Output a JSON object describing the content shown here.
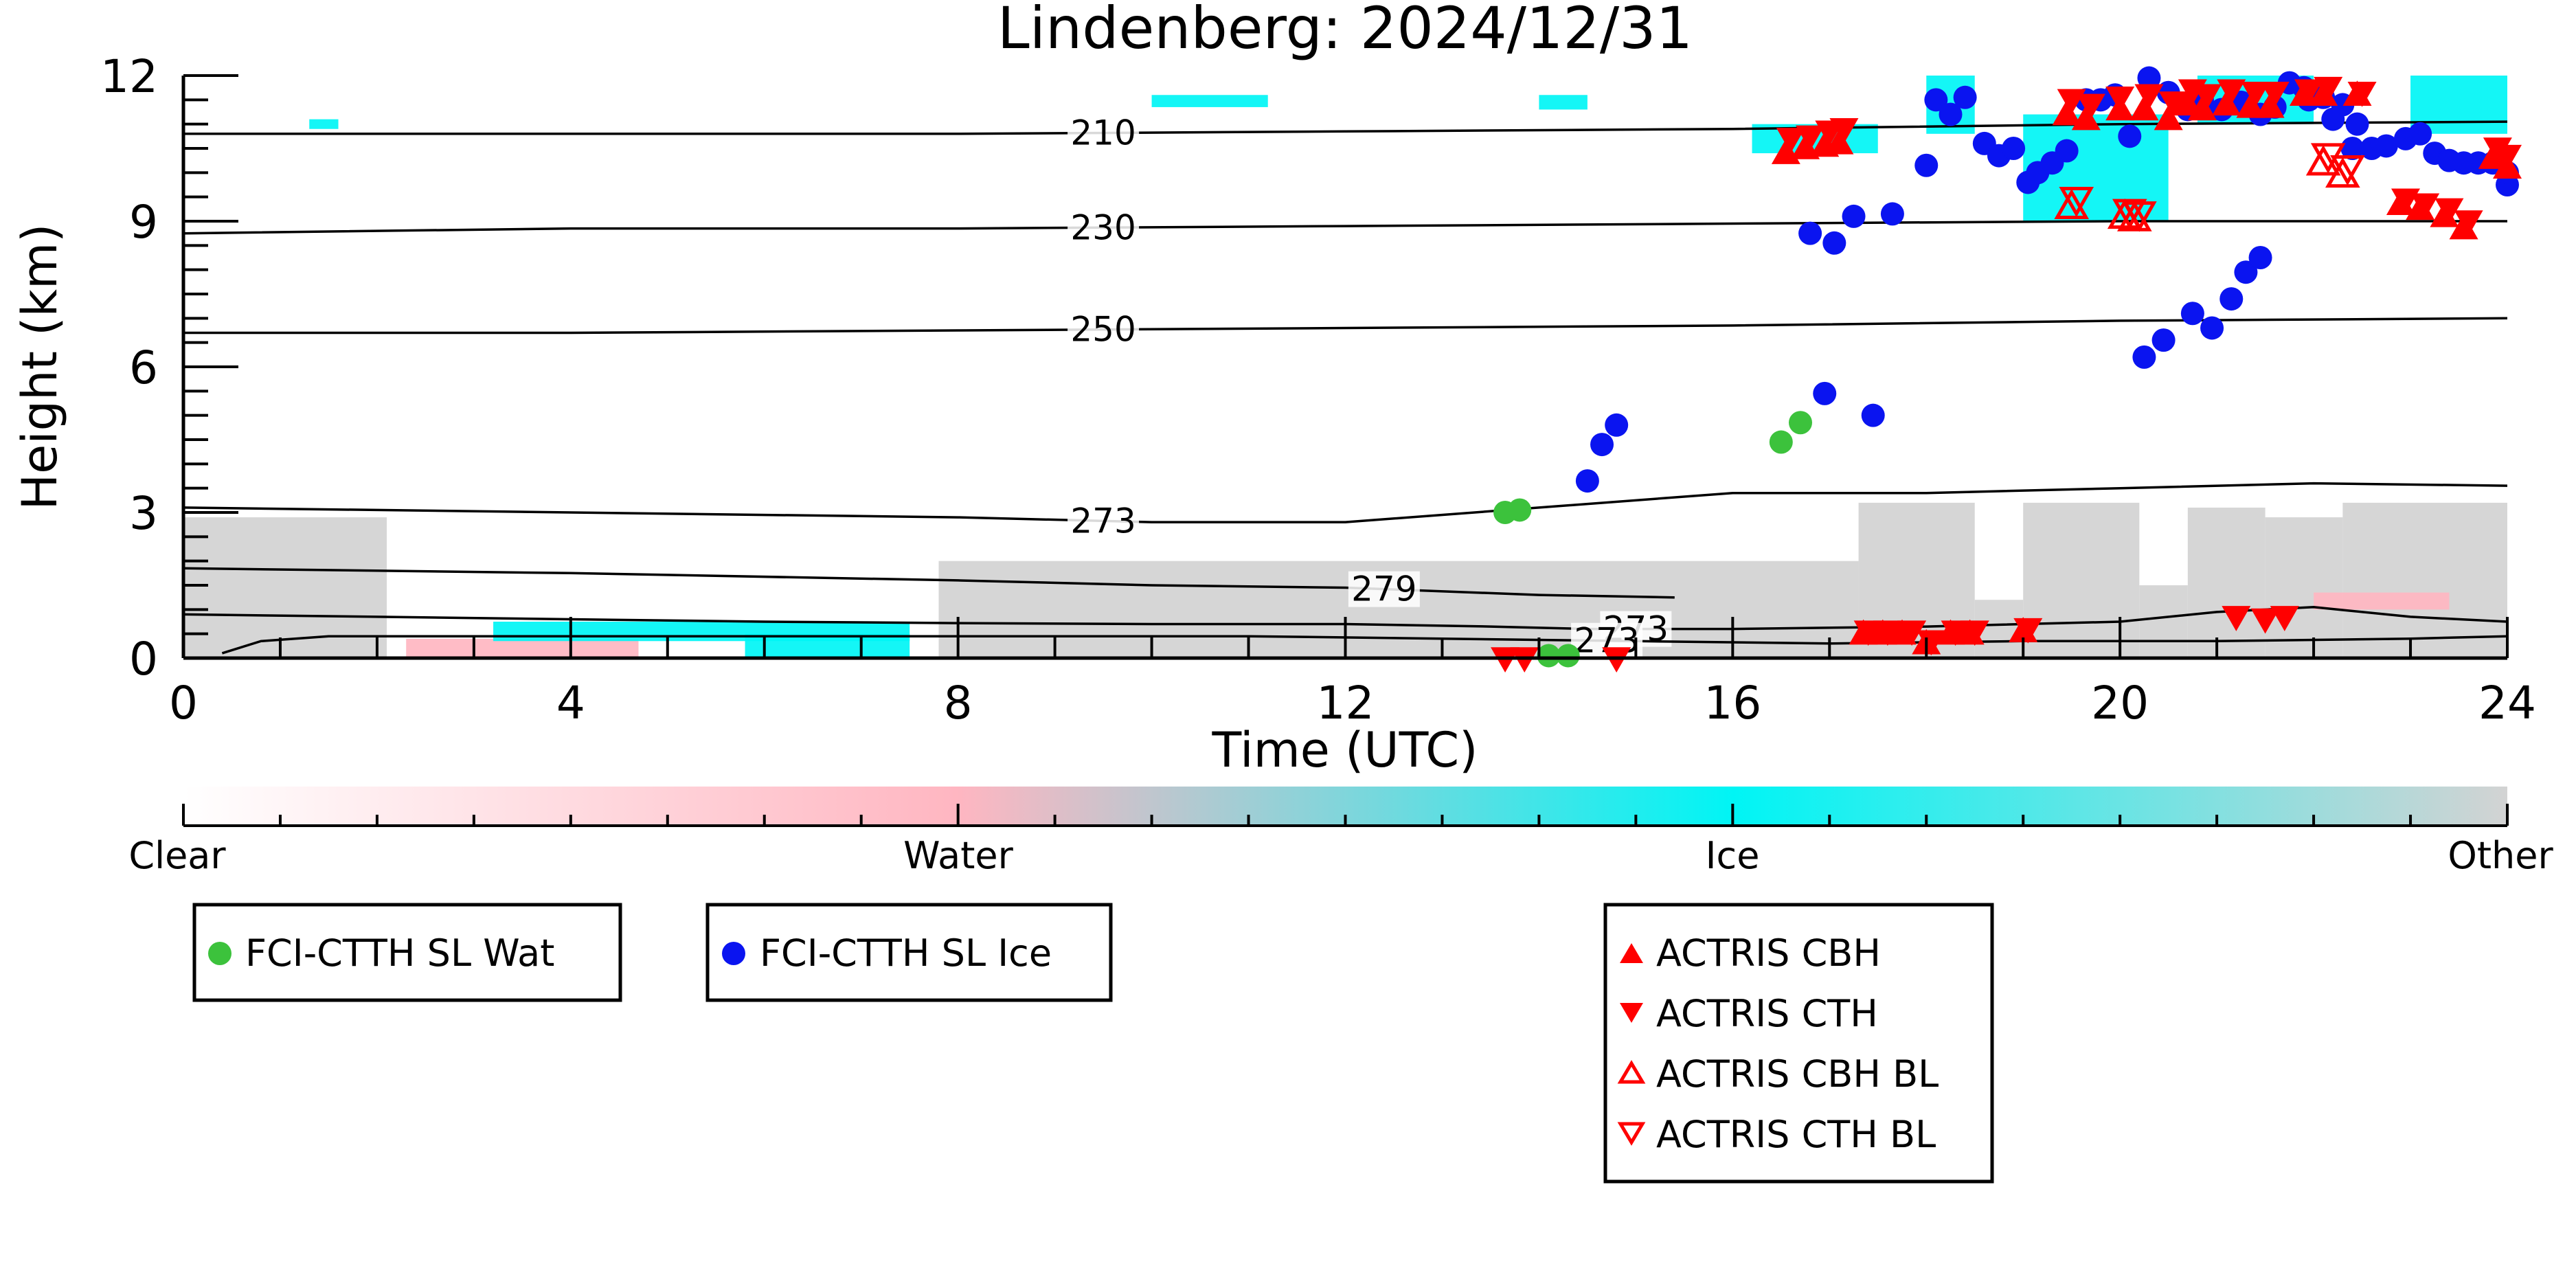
{
  "chart_data": {
    "type": "scatter",
    "title": "Lindenberg: 2024/12/31",
    "xlabel": "Time (UTC)",
    "ylabel": "Height (km)",
    "xlim": [
      0,
      24
    ],
    "ylim": [
      0,
      12
    ],
    "x_ticks": [
      "0",
      "4",
      "8",
      "12",
      "16",
      "20",
      "24"
    ],
    "y_ticks": [
      "0",
      "3",
      "6",
      "9",
      "12"
    ],
    "colorbar": {
      "labels": [
        "Clear",
        "Water",
        "Ice",
        "Other"
      ],
      "colors": [
        "#ffffff",
        "#ffb6c1",
        "#00f5f5",
        "#d3d3d3"
      ]
    },
    "isotherms": [
      {
        "label": "210",
        "label_x": 9.5,
        "x": [
          0,
          4,
          8,
          12,
          16,
          20,
          24
        ],
        "y": [
          10.8,
          10.8,
          10.8,
          10.85,
          10.9,
          11.0,
          11.05
        ]
      },
      {
        "label": "230",
        "label_x": 9.5,
        "x": [
          0,
          4,
          8,
          12,
          16,
          20,
          24
        ],
        "y": [
          8.75,
          8.85,
          8.85,
          8.9,
          8.95,
          9.0,
          9.0
        ]
      },
      {
        "label": "250",
        "label_x": 9.5,
        "x": [
          0,
          4,
          8,
          12,
          16,
          20,
          24
        ],
        "y": [
          6.7,
          6.7,
          6.75,
          6.8,
          6.85,
          6.95,
          7.0
        ]
      },
      {
        "label": "273",
        "label_x": 9.5,
        "x": [
          0,
          4,
          8,
          10,
          12,
          14,
          16,
          18,
          20,
          22,
          24
        ],
        "y": [
          3.1,
          3.0,
          2.9,
          2.8,
          2.8,
          3.1,
          3.4,
          3.4,
          3.5,
          3.6,
          3.55
        ]
      },
      {
        "label": "279",
        "label_x": 12.4,
        "x": [
          0,
          4,
          8,
          10,
          12,
          14,
          15.4
        ],
        "y": [
          1.85,
          1.75,
          1.6,
          1.5,
          1.45,
          1.3,
          1.25
        ]
      },
      {
        "label": "273",
        "label_x": 15,
        "x": [
          0,
          2,
          4,
          6,
          8,
          10,
          12,
          13.5,
          14.5,
          15,
          16,
          18,
          20,
          21,
          22,
          23,
          24
        ],
        "y": [
          0.9,
          0.85,
          0.8,
          0.75,
          0.72,
          0.7,
          0.7,
          0.65,
          0.6,
          0.6,
          0.6,
          0.65,
          0.75,
          0.95,
          1.05,
          0.85,
          0.75
        ]
      },
      {
        "label": "273",
        "label_x": 14.7,
        "x": [
          0.4,
          0.8,
          1.5,
          3,
          5,
          7,
          9,
          11,
          13,
          15,
          17,
          19,
          21,
          23,
          24
        ],
        "y": [
          0.1,
          0.35,
          0.45,
          0.45,
          0.45,
          0.45,
          0.45,
          0.45,
          0.4,
          0.35,
          0.3,
          0.35,
          0.35,
          0.4,
          0.45
        ]
      }
    ],
    "series": [
      {
        "name": "FCI-CTTH SL Wat",
        "marker": "circle",
        "color": "#3cc23c",
        "x": [
          13.65,
          13.8,
          16.5,
          16.7,
          14.1,
          14.3
        ],
        "y": [
          3.0,
          3.05,
          4.45,
          4.85,
          0.05,
          0.05
        ]
      },
      {
        "name": "FCI-CTTH SL Ice",
        "marker": "circle",
        "color": "#0a14f0",
        "x": [
          14.5,
          14.65,
          14.8,
          16.8,
          17.05,
          17.25,
          16.95,
          17.45,
          17.65,
          18.0,
          18.1,
          18.25,
          18.4,
          18.6,
          18.75,
          18.9,
          19.05,
          19.15,
          19.3,
          19.45,
          19.65,
          19.8,
          19.95,
          20.1,
          20.3,
          20.5,
          20.7,
          20.85,
          21.05,
          21.25,
          21.45,
          21.6,
          21.75,
          21.9,
          22.1,
          22.3,
          22.45,
          22.6,
          22.75,
          22.95,
          23.1,
          23.25,
          23.4,
          23.55,
          23.7,
          23.85,
          24.0,
          24.0,
          20.25,
          20.45,
          20.75,
          20.95,
          21.15,
          21.3,
          21.45,
          21.95,
          22.2,
          22.4
        ],
        "y": [
          3.65,
          4.4,
          4.8,
          8.75,
          8.55,
          9.1,
          5.45,
          5.0,
          9.15,
          10.15,
          11.5,
          11.2,
          11.55,
          10.6,
          10.35,
          10.5,
          9.8,
          10.0,
          10.2,
          10.45,
          11.5,
          11.5,
          11.6,
          10.75,
          11.95,
          11.65,
          11.3,
          11.5,
          11.3,
          11.45,
          11.2,
          11.35,
          11.85,
          11.75,
          11.55,
          11.4,
          11.0,
          10.5,
          10.55,
          10.7,
          10.8,
          10.4,
          10.25,
          10.2,
          10.2,
          10.2,
          9.75,
          10.0,
          6.2,
          6.55,
          7.1,
          6.8,
          7.4,
          7.95,
          8.25,
          11.5,
          11.1,
          10.5
        ],
        "note": "circle"
      },
      {
        "name": "ACTRIS CBH",
        "marker": "triangle-up",
        "color": "#ff0000",
        "x": [
          16.55,
          16.75,
          16.95,
          17.1,
          17.35,
          17.55,
          17.75,
          18.0,
          18.25,
          18.45,
          19.0,
          19.45,
          19.65,
          20.0,
          20.25,
          20.5,
          20.7,
          20.85,
          21.1,
          21.35,
          21.55,
          21.9,
          22.1,
          22.45,
          22.9,
          23.1,
          23.35,
          23.55,
          23.85,
          24.0
        ],
        "y": [
          10.4,
          10.5,
          10.55,
          10.6,
          0.5,
          0.5,
          0.5,
          0.3,
          0.5,
          0.5,
          0.55,
          11.2,
          11.1,
          11.3,
          11.3,
          11.1,
          11.4,
          11.3,
          11.4,
          11.35,
          11.35,
          11.6,
          11.6,
          11.6,
          9.35,
          9.25,
          9.1,
          8.85,
          10.3,
          10.1
        ]
      },
      {
        "name": "ACTRIS CTH",
        "marker": "triangle-down",
        "color": "#ff0000",
        "x": [
          16.6,
          16.8,
          17.0,
          17.15,
          17.4,
          17.6,
          17.85,
          18.05,
          18.3,
          18.5,
          19.05,
          19.5,
          19.7,
          20.0,
          20.3,
          20.55,
          20.75,
          20.9,
          21.15,
          21.4,
          21.6,
          21.95,
          22.15,
          22.5,
          22.95,
          23.15,
          23.4,
          23.6,
          23.9,
          24.0,
          13.65,
          13.85,
          14.8,
          21.2,
          21.5,
          21.7
        ],
        "y": [
          10.7,
          10.75,
          10.85,
          10.9,
          0.55,
          0.55,
          0.55,
          0.35,
          0.55,
          0.55,
          0.6,
          11.5,
          11.4,
          11.55,
          11.6,
          11.45,
          11.7,
          11.6,
          11.7,
          11.65,
          11.65,
          11.7,
          11.75,
          11.65,
          9.45,
          9.35,
          9.25,
          9.0,
          10.5,
          10.35,
          0.0,
          0.0,
          0.0,
          0.85,
          0.8,
          0.85
        ]
      },
      {
        "name": "ACTRIS CBH BL",
        "marker": "triangle-up-open",
        "color": "#ff0000",
        "x": [
          22.1,
          22.3,
          19.5,
          20.05,
          20.15
        ],
        "y": [
          10.2,
          9.95,
          9.3,
          9.1,
          9.05
        ]
      },
      {
        "name": "ACTRIS CTH BL",
        "marker": "triangle-down-open",
        "color": "#ff0000",
        "x": [
          22.15,
          22.35,
          19.55,
          20.1,
          20.2
        ],
        "y": [
          10.35,
          10.1,
          9.45,
          9.2,
          9.15
        ]
      }
    ],
    "background_classification": {
      "other_regions": [
        [
          0.0,
          2.1,
          0.0,
          2.9
        ],
        [
          7.8,
          17.3,
          0.0,
          2.0
        ],
        [
          17.3,
          18.5,
          0.0,
          3.2
        ],
        [
          18.5,
          19.0,
          0.0,
          1.2
        ],
        [
          19.0,
          20.2,
          0.0,
          3.2
        ],
        [
          20.2,
          20.7,
          0.0,
          1.5
        ],
        [
          20.7,
          21.5,
          0.0,
          3.1
        ],
        [
          21.5,
          22.3,
          0.0,
          2.9
        ],
        [
          22.3,
          24.0,
          0.0,
          3.2
        ]
      ],
      "water_regions": [
        [
          2.3,
          4.7,
          0.0,
          0.4
        ],
        [
          22.0,
          23.4,
          1.0,
          1.35
        ]
      ],
      "ice_regions": [
        [
          3.2,
          7.5,
          0.35,
          0.75
        ],
        [
          5.8,
          7.5,
          0.0,
          0.5
        ],
        [
          16.2,
          17.5,
          10.4,
          11.0
        ],
        [
          19.0,
          20.5,
          9.0,
          11.2
        ],
        [
          20.8,
          22.0,
          11.0,
          12.0
        ],
        [
          14.0,
          14.5,
          11.3,
          11.6
        ],
        [
          10.0,
          11.2,
          11.35,
          11.6
        ],
        [
          1.3,
          1.6,
          10.9,
          11.1
        ],
        [
          18.0,
          18.5,
          10.8,
          12.0
        ],
        [
          23.0,
          24.0,
          10.8,
          12.0
        ]
      ]
    },
    "legend": [
      {
        "group": "left",
        "entries": [
          "FCI-CTTH SL Wat"
        ]
      },
      {
        "group": "middle",
        "entries": [
          "FCI-CTTH SL Ice"
        ]
      },
      {
        "group": "right",
        "entries": [
          "ACTRIS CBH",
          "ACTRIS CTH",
          "ACTRIS CBH BL",
          "ACTRIS CTH BL"
        ]
      }
    ],
    "grid": false,
    "legend_placement": "below"
  }
}
